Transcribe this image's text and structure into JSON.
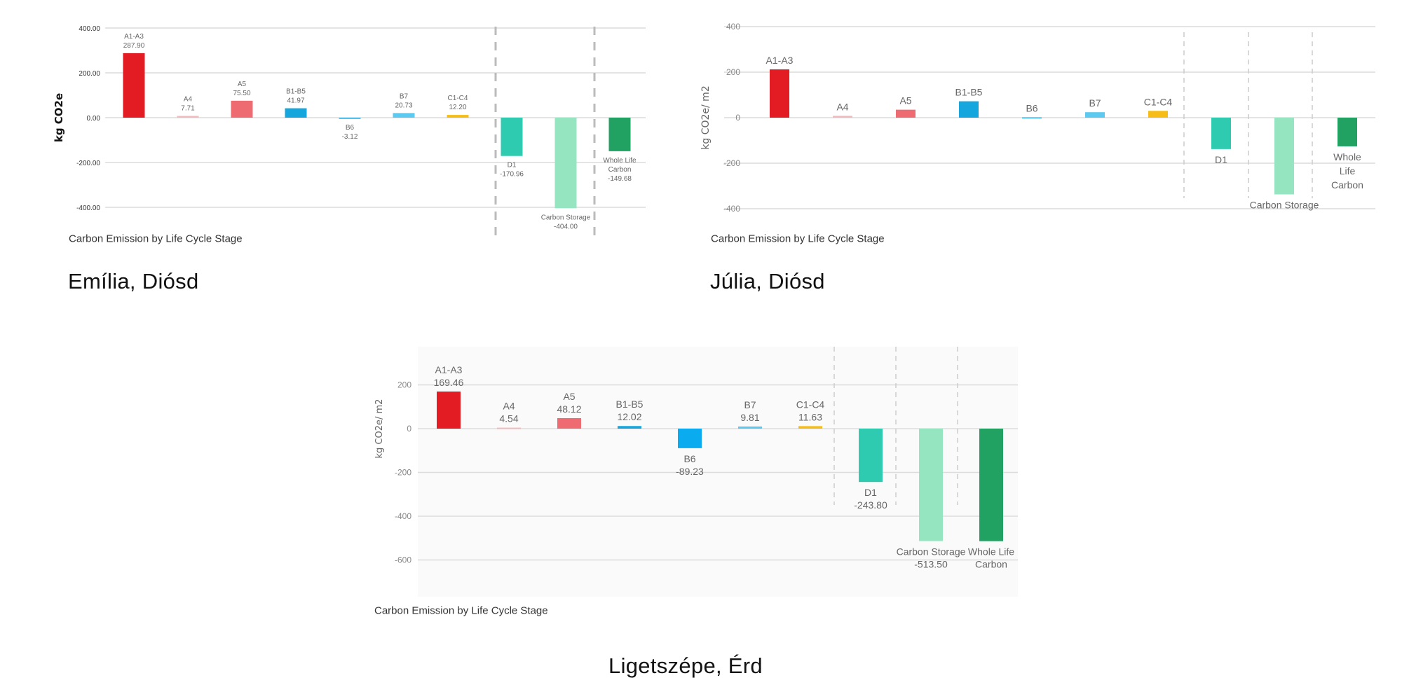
{
  "chart_data": [
    {
      "type": "bar",
      "caption": "Emília, Diósd",
      "title": "Carbon Emission by Life Cycle Stage",
      "ylabel": "kg CO2e",
      "ylim": [
        -400,
        400
      ],
      "yticks": [
        400,
        200,
        0,
        -200,
        -400
      ],
      "ytick_labels": [
        "400.00",
        "200.00",
        "0.00",
        "-200.00",
        "-400.00"
      ],
      "grid": true,
      "categories": [
        "A1-A3",
        "A4",
        "A5",
        "B1-B5",
        "B6",
        "B7",
        "C1-C4",
        "D1",
        "Carbon Storage",
        "Whole Life Carbon"
      ],
      "values": [
        287.9,
        7.71,
        75.5,
        41.97,
        -3.12,
        20.73,
        12.2,
        -170.96,
        -404.0,
        -149.68
      ],
      "labels": [
        [
          "A1-A3",
          "287.90"
        ],
        [
          "A4",
          "7.71"
        ],
        [
          "A5",
          "75.50"
        ],
        [
          "B1-B5",
          "41.97"
        ],
        [
          "B6",
          "-3.12"
        ],
        [
          "B7",
          "20.73"
        ],
        [
          "C1-C4",
          "12.20"
        ],
        [
          "D1",
          "-170.96"
        ],
        [
          "Carbon Storage",
          "-404.00"
        ],
        [
          "Whole Life",
          "Carbon",
          "-149.68"
        ]
      ],
      "colors": [
        "#e31b23",
        "#f2b9be",
        "#ee6b72",
        "#16a6de",
        "#4fc3ee",
        "#5ccaf0",
        "#f6bd16",
        "#2fcbb0",
        "#95e6c0",
        "#21a262"
      ]
    },
    {
      "type": "bar",
      "caption": "Júlia, Diósd",
      "title": "Carbon Emission by Life Cycle Stage",
      "ylabel": "kg CO2e/ m2",
      "ylim": [
        -400,
        400
      ],
      "yticks": [
        400,
        200,
        0,
        -200,
        -400
      ],
      "ytick_labels": [
        "400",
        "200",
        "0",
        "-200",
        "-400"
      ],
      "grid": true,
      "categories": [
        "A1-A3",
        "A4",
        "A5",
        "B1-B5",
        "B6",
        "B7",
        "C1-C4",
        "D1",
        "Carbon Storage",
        "Whole Life Carbon"
      ],
      "values": [
        212,
        8,
        35,
        72,
        2,
        24,
        30,
        -138,
        -337,
        -126
      ],
      "labels": [
        [
          "A1-A3"
        ],
        [
          "A4"
        ],
        [
          "A5"
        ],
        [
          "B1-B5"
        ],
        [
          "B6"
        ],
        [
          "B7"
        ],
        [
          "C1-C4"
        ],
        [
          "D1"
        ],
        [
          "Carbon Storage"
        ],
        [
          "Whole",
          "Life",
          "Carbon"
        ]
      ],
      "colors": [
        "#e31b23",
        "#f2b9be",
        "#ee6b72",
        "#16a6de",
        "#4fc3ee",
        "#5ccaf0",
        "#f6bd16",
        "#2fcbb0",
        "#95e6c0",
        "#21a262"
      ]
    },
    {
      "type": "bar",
      "caption": "Ligetszépe, Érd",
      "title": "Carbon Emission by Life Cycle Stage",
      "ylabel": "kg CO2e/ m2",
      "ylim": [
        -700,
        300
      ],
      "yticks": [
        200,
        0,
        -200,
        -400,
        -600
      ],
      "ytick_labels": [
        "200",
        "0",
        "-200",
        "-400",
        "-600"
      ],
      "grid": true,
      "categories": [
        "A1-A3",
        "A4",
        "A5",
        "B1-B5",
        "B6",
        "B7",
        "C1-C4",
        "D1",
        "Carbon Storage",
        "Whole Life Carbon"
      ],
      "values": [
        169.46,
        4.54,
        48.12,
        12.02,
        -89.23,
        9.81,
        11.63,
        -243.8,
        -513.5,
        -514
      ],
      "labels": [
        [
          "A1-A3",
          "169.46"
        ],
        [
          "A4",
          "4.54"
        ],
        [
          "A5",
          "48.12"
        ],
        [
          "B1-B5",
          "12.02"
        ],
        [
          "B6",
          "-89.23"
        ],
        [
          "B7",
          "9.81"
        ],
        [
          "C1-C4",
          "11.63"
        ],
        [
          "D1",
          "-243.80"
        ],
        [
          "Carbon Storage",
          "-513.50"
        ],
        [
          "Whole Life",
          "Carbon"
        ]
      ],
      "colors": [
        "#e31b23",
        "#f2b9be",
        "#ee6b72",
        "#16a6de",
        "#0aabef",
        "#5ccaf0",
        "#f6bd16",
        "#2fcbb0",
        "#95e6c0",
        "#21a262"
      ]
    }
  ]
}
